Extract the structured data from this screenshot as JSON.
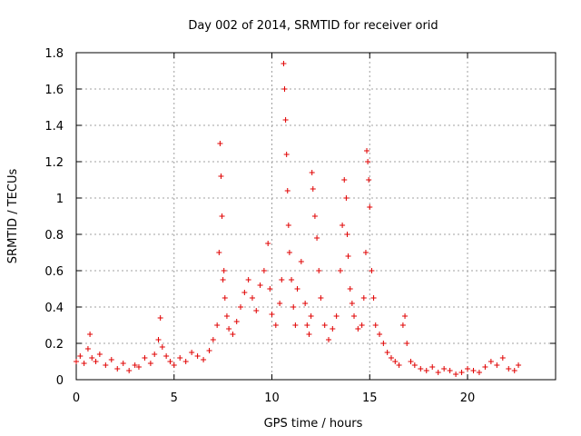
{
  "chart_data": {
    "type": "scatter",
    "title": "Day 002 of 2014, SRMTID for receiver orid",
    "xlabel": "GPS time / hours",
    "ylabel": "SRMTID / TECUs",
    "xlim": [
      0,
      24.5
    ],
    "ylim": [
      0,
      1.8
    ],
    "xticks": [
      0,
      5,
      10,
      15,
      20
    ],
    "xtick_labels": [
      "0",
      "5",
      "10",
      "15",
      "20"
    ],
    "yticks": [
      0,
      0.2,
      0.4,
      0.6,
      0.8,
      1.0,
      1.2,
      1.4,
      1.6,
      1.8
    ],
    "ytick_labels": [
      "0",
      "0.2",
      "0.4",
      "0.6",
      "0.8",
      "1",
      "1.2",
      "1.4",
      "1.6",
      "1.8"
    ],
    "grid": true,
    "marker_color": "#e00000",
    "marker": "+",
    "series": [
      {
        "name": "SRMTID",
        "x": [
          0.0,
          0.2,
          0.4,
          0.6,
          0.7,
          0.8,
          1.0,
          1.2,
          1.5,
          1.8,
          2.1,
          2.4,
          2.7,
          3.0,
          3.2,
          3.5,
          3.8,
          4.0,
          4.2,
          4.3,
          4.4,
          4.6,
          4.8,
          5.0,
          5.3,
          5.6,
          5.9,
          6.2,
          6.5,
          6.8,
          7.0,
          7.2,
          7.3,
          7.35,
          7.4,
          7.45,
          7.5,
          7.55,
          7.6,
          7.7,
          7.8,
          8.0,
          8.2,
          8.4,
          8.6,
          8.8,
          9.0,
          9.2,
          9.4,
          9.6,
          9.8,
          9.9,
          10.0,
          10.2,
          10.4,
          10.5,
          10.6,
          10.65,
          10.7,
          10.75,
          10.8,
          10.85,
          10.9,
          11.0,
          11.1,
          11.2,
          11.3,
          11.5,
          11.7,
          11.8,
          11.9,
          12.0,
          12.05,
          12.1,
          12.2,
          12.3,
          12.4,
          12.5,
          12.7,
          12.9,
          13.1,
          13.3,
          13.5,
          13.6,
          13.7,
          13.8,
          13.85,
          13.9,
          14.0,
          14.1,
          14.2,
          14.4,
          14.6,
          14.7,
          14.8,
          14.85,
          14.9,
          14.95,
          15.0,
          15.1,
          15.2,
          15.3,
          15.5,
          15.7,
          15.9,
          16.1,
          16.3,
          16.5,
          16.7,
          16.8,
          16.9,
          17.1,
          17.3,
          17.6,
          17.9,
          18.2,
          18.5,
          18.8,
          19.1,
          19.4,
          19.7,
          20.0,
          20.3,
          20.6,
          20.9,
          21.2,
          21.5,
          21.8,
          22.1,
          22.4,
          22.6
        ],
        "y": [
          0.1,
          0.13,
          0.09,
          0.17,
          0.25,
          0.12,
          0.1,
          0.14,
          0.08,
          0.11,
          0.06,
          0.09,
          0.05,
          0.08,
          0.07,
          0.12,
          0.09,
          0.14,
          0.22,
          0.34,
          0.18,
          0.13,
          0.1,
          0.08,
          0.12,
          0.1,
          0.15,
          0.13,
          0.11,
          0.16,
          0.22,
          0.3,
          0.7,
          1.3,
          1.12,
          0.9,
          0.55,
          0.6,
          0.45,
          0.35,
          0.28,
          0.25,
          0.32,
          0.4,
          0.48,
          0.55,
          0.45,
          0.38,
          0.52,
          0.6,
          0.75,
          0.5,
          0.36,
          0.3,
          0.42,
          0.55,
          1.74,
          1.6,
          1.43,
          1.24,
          1.04,
          0.85,
          0.7,
          0.55,
          0.4,
          0.3,
          0.5,
          0.65,
          0.42,
          0.3,
          0.25,
          0.35,
          1.14,
          1.05,
          0.9,
          0.78,
          0.6,
          0.45,
          0.3,
          0.22,
          0.28,
          0.35,
          0.6,
          0.85,
          1.1,
          1.0,
          0.8,
          0.68,
          0.5,
          0.42,
          0.35,
          0.28,
          0.3,
          0.45,
          0.7,
          1.26,
          1.2,
          1.1,
          0.95,
          0.6,
          0.45,
          0.3,
          0.25,
          0.2,
          0.15,
          0.12,
          0.1,
          0.08,
          0.3,
          0.35,
          0.2,
          0.1,
          0.08,
          0.06,
          0.05,
          0.07,
          0.04,
          0.06,
          0.05,
          0.03,
          0.04,
          0.06,
          0.05,
          0.04,
          0.07,
          0.1,
          0.08,
          0.12,
          0.06,
          0.05,
          0.08
        ]
      }
    ]
  }
}
